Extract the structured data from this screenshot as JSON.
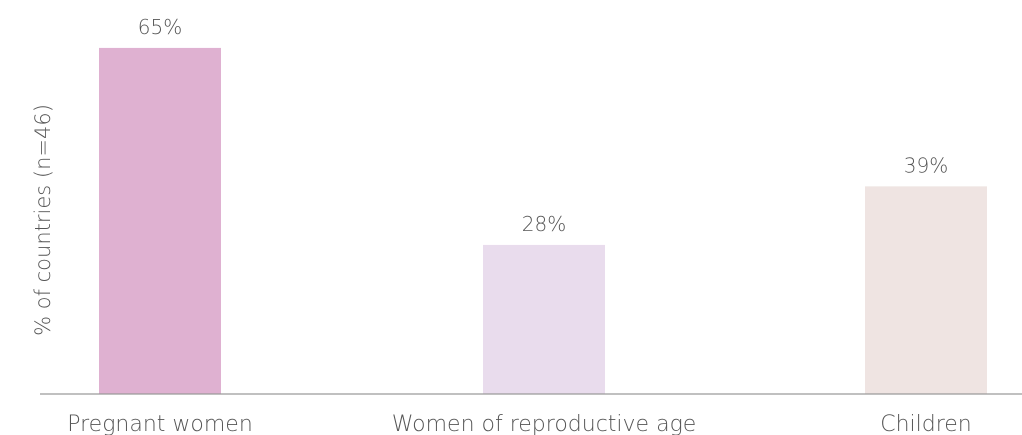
{
  "chart_data": {
    "type": "bar",
    "categories": [
      "Pregnant women",
      "Women of reproductive age",
      "Children"
    ],
    "values": [
      65,
      28,
      39
    ],
    "value_labels": [
      "65%",
      "28%",
      "39%"
    ],
    "ylabel": "% of countries (n=46)",
    "ylim": [
      0,
      74
    ],
    "grid": false,
    "colors": [
      "#dfb1d1",
      "#e9dced",
      "#efe4e2"
    ],
    "axis_color": "#9a9a9a"
  }
}
